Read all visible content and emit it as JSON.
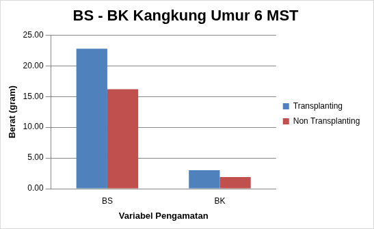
{
  "chart_data": {
    "type": "bar",
    "title": "BS - BK Kangkung Umur 6 MST",
    "x_label": "Variabel Pengamatan",
    "y_label": "Berat (gram)",
    "categories": [
      "BS",
      "BK"
    ],
    "series": [
      {
        "name": "Transplanting",
        "color": "#4f81bd",
        "values": [
          22.8,
          3.0
        ]
      },
      {
        "name": "Non Transplanting",
        "color": "#c0504d",
        "values": [
          16.2,
          1.9
        ]
      }
    ],
    "ylim": [
      0,
      25
    ],
    "yticks": [
      {
        "value": 0,
        "label": "0.00"
      },
      {
        "value": 5,
        "label": "5.00"
      },
      {
        "value": 10,
        "label": "10.00"
      },
      {
        "value": 15,
        "label": "15.00"
      },
      {
        "value": 20,
        "label": "20.00"
      },
      {
        "value": 25,
        "label": "25.00"
      }
    ],
    "grid": true,
    "legend": "right"
  }
}
